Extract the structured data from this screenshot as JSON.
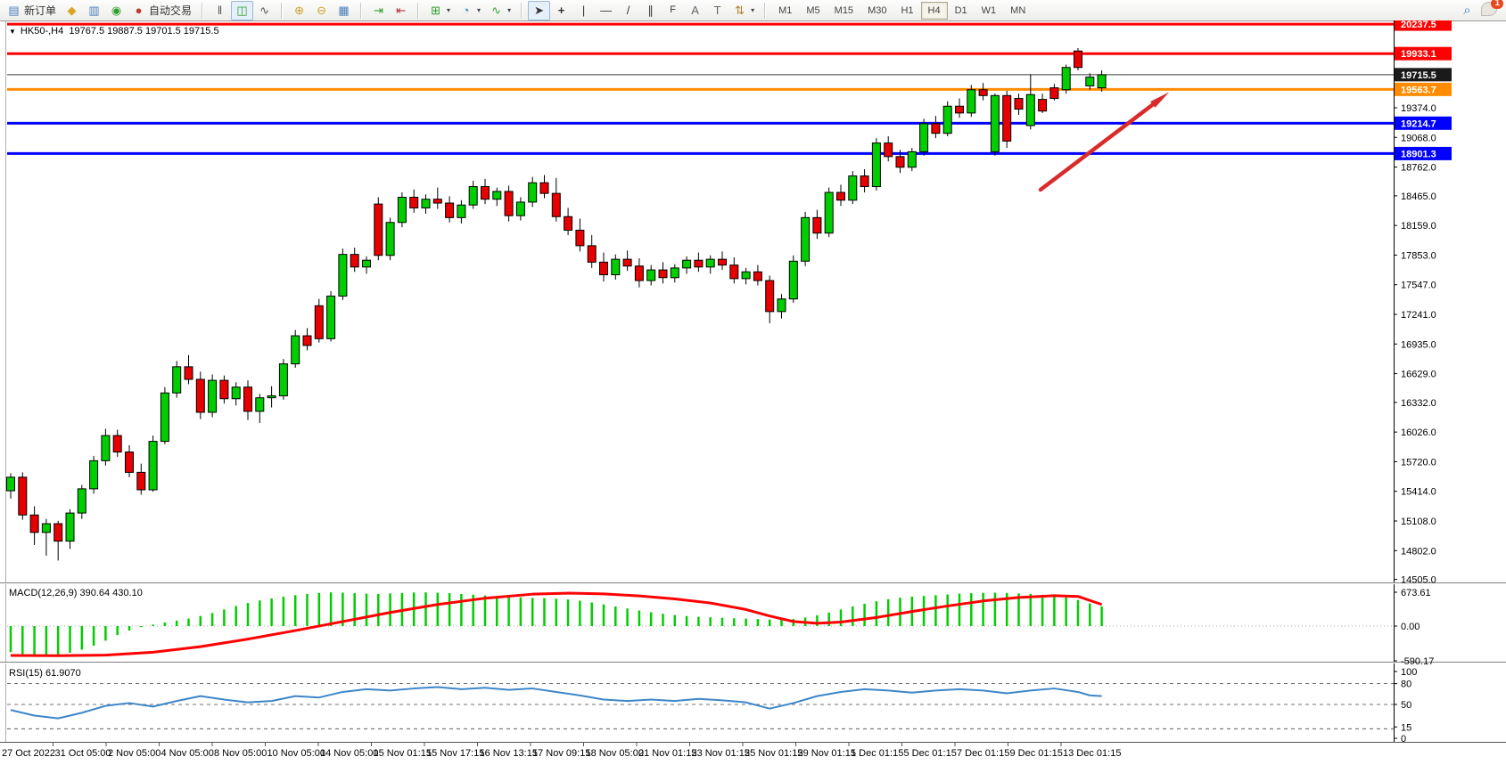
{
  "toolbar": {
    "new_order_label": "新订单",
    "auto_trading_label": "自动交易",
    "icon_glyphs": {
      "new_order": "▤",
      "gold": "◆",
      "charts_window": "▥",
      "signal": "◉",
      "auto_trading": "●",
      "bar_chart": "‖",
      "candle_chart": "◫",
      "line_chart": "∿",
      "zoom_in": "⊕",
      "zoom_out": "⊖",
      "tile_windows": "▦",
      "auto_scroll": "⇥",
      "chart_shift": "⇤",
      "new_chart": "⊞",
      "profiles": "◔",
      "indicators": "∿",
      "cursor": "➤",
      "crosshair": "+",
      "vertical_line": "|",
      "horizontal_line": "—",
      "trendline": "/",
      "channel": "∥",
      "fibonacci": "F",
      "text": "A",
      "text_label": "T",
      "arrows": "⇅",
      "search": "⌕",
      "caret": "▾"
    },
    "timeframes": [
      "M1",
      "M5",
      "M15",
      "M30",
      "H1",
      "H4",
      "D1",
      "W1",
      "MN"
    ],
    "active_timeframe": "H4",
    "chat_badge_count": "1"
  },
  "chart_header": {
    "symbol_period": "HK50-,H4",
    "ohlc": "19767.5 19887.5 19701.5 19715.5",
    "dropdown_glyph": "▼"
  },
  "macd_panel": {
    "label": "MACD(12,26,9)",
    "values": "390.64 430.10",
    "scale": [
      "673.61",
      "0.00",
      "-590.17"
    ]
  },
  "rsi_panel": {
    "label": "RSI(15)",
    "value": "61.9070",
    "scale": [
      "100",
      "80",
      "50",
      "15",
      "0"
    ],
    "dashed_levels": [
      80,
      50,
      15
    ]
  },
  "colors": {
    "up_candle": "#00CE00",
    "down_candle": "#E80000",
    "wick": "#000000",
    "macd_hist": "#00CE00",
    "macd_signal": "#FF0000",
    "rsi_line": "#3E86C8",
    "line_red": "#FF0000",
    "line_orange": "#FF8C00",
    "line_blue": "#0000FF",
    "line_black": "#3a3a3a",
    "badge_black": "#1a1a1a",
    "arrow": "#D92B2B"
  },
  "chart_data": {
    "type": "candlestick",
    "symbol": "HK50-",
    "period": "H4",
    "price_axis_ticks": [
      19374.0,
      19068.0,
      18762.0,
      18465.0,
      18159.0,
      17853.0,
      17547.0,
      17241.0,
      16935.0,
      16629.0,
      16332.0,
      16026.0,
      15720.0,
      15414.0,
      15108.0,
      14802.0,
      14505.0
    ],
    "price_range_visible": [
      14483,
      20266
    ],
    "horizontal_lines": [
      {
        "label": "20237.5",
        "value": 20237.5,
        "color": "red",
        "width": 3
      },
      {
        "label": "19933.1",
        "value": 19933.1,
        "color": "red",
        "width": 3
      },
      {
        "label": "19715.5",
        "value": 19715.5,
        "color": "black",
        "width": 1
      },
      {
        "label": "19563.7",
        "value": 19563.7,
        "color": "orange",
        "width": 3
      },
      {
        "label": "19214.7",
        "value": 19214.7,
        "color": "blue",
        "width": 3
      },
      {
        "label": "18901.3",
        "value": 18901.3,
        "color": "blue",
        "width": 3
      }
    ],
    "x_labels": [
      "27 Oct 2022",
      "31 Oct 05:00",
      "2 Nov 05:00",
      "4 Nov 05:00",
      "8 Nov 05:00",
      "10 Nov 05:00",
      "14 Nov 05:00",
      "15 Nov 01:15",
      "15 Nov 17:15",
      "16 Nov 13:15",
      "17 Nov 09:15",
      "18 Nov 05:00",
      "21 Nov 01:15",
      "23 Nov 01:15",
      "25 Nov 01:15",
      "29 Nov 01:15",
      "1 Dec 01:15",
      "5 Dec 01:15",
      "7 Dec 01:15",
      "9 Dec 01:15",
      "13 Dec 01:15"
    ],
    "candles_ohlc_estimated": [
      [
        15420,
        15600,
        15340,
        15560
      ],
      [
        15560,
        15610,
        15120,
        15170
      ],
      [
        15170,
        15260,
        14860,
        14990
      ],
      [
        14990,
        15130,
        14750,
        15080
      ],
      [
        15080,
        15110,
        14700,
        14900
      ],
      [
        14900,
        15230,
        14820,
        15190
      ],
      [
        15190,
        15480,
        15130,
        15440
      ],
      [
        15440,
        15780,
        15390,
        15730
      ],
      [
        15730,
        16060,
        15680,
        15990
      ],
      [
        15990,
        16050,
        15770,
        15820
      ],
      [
        15820,
        15890,
        15560,
        15610
      ],
      [
        15610,
        15700,
        15380,
        15430
      ],
      [
        15430,
        15990,
        15410,
        15930
      ],
      [
        15930,
        16490,
        15900,
        16430
      ],
      [
        16430,
        16760,
        16380,
        16700
      ],
      [
        16700,
        16820,
        16520,
        16570
      ],
      [
        16570,
        16650,
        16160,
        16230
      ],
      [
        16230,
        16620,
        16180,
        16560
      ],
      [
        16560,
        16610,
        16320,
        16370
      ],
      [
        16370,
        16540,
        16300,
        16490
      ],
      [
        16490,
        16560,
        16150,
        16240
      ],
      [
        16240,
        16420,
        16120,
        16380
      ],
      [
        16380,
        16500,
        16280,
        16400
      ],
      [
        16400,
        16780,
        16360,
        16730
      ],
      [
        16730,
        17080,
        16690,
        17020
      ],
      [
        17020,
        17100,
        16870,
        16920
      ],
      [
        17330,
        17400,
        16950,
        16990
      ],
      [
        16990,
        17480,
        16960,
        17430
      ],
      [
        17430,
        17920,
        17390,
        17860
      ],
      [
        17860,
        17930,
        17680,
        17730
      ],
      [
        17730,
        17840,
        17660,
        17800
      ],
      [
        18380,
        18450,
        17800,
        17850
      ],
      [
        17850,
        18240,
        17800,
        18190
      ],
      [
        18190,
        18500,
        18140,
        18450
      ],
      [
        18450,
        18530,
        18290,
        18340
      ],
      [
        18340,
        18480,
        18280,
        18430
      ],
      [
        18430,
        18550,
        18330,
        18390
      ],
      [
        18390,
        18460,
        18190,
        18240
      ],
      [
        18240,
        18420,
        18180,
        18370
      ],
      [
        18370,
        18620,
        18330,
        18560
      ],
      [
        18560,
        18640,
        18380,
        18430
      ],
      [
        18430,
        18550,
        18360,
        18510
      ],
      [
        18510,
        18570,
        18200,
        18260
      ],
      [
        18260,
        18450,
        18210,
        18400
      ],
      [
        18400,
        18660,
        18350,
        18600
      ],
      [
        18600,
        18680,
        18440,
        18490
      ],
      [
        18490,
        18650,
        18200,
        18250
      ],
      [
        18250,
        18340,
        18060,
        18110
      ],
      [
        18110,
        18230,
        17890,
        17950
      ],
      [
        17950,
        18060,
        17720,
        17780
      ],
      [
        17780,
        17880,
        17580,
        17650
      ],
      [
        17650,
        17860,
        17600,
        17810
      ],
      [
        17810,
        17900,
        17690,
        17740
      ],
      [
        17740,
        17820,
        17520,
        17590
      ],
      [
        17590,
        17750,
        17540,
        17700
      ],
      [
        17700,
        17780,
        17560,
        17620
      ],
      [
        17620,
        17760,
        17570,
        17720
      ],
      [
        17720,
        17840,
        17660,
        17800
      ],
      [
        17800,
        17880,
        17680,
        17730
      ],
      [
        17730,
        17850,
        17660,
        17810
      ],
      [
        17810,
        17890,
        17700,
        17750
      ],
      [
        17750,
        17830,
        17560,
        17610
      ],
      [
        17610,
        17720,
        17550,
        17680
      ],
      [
        17680,
        17750,
        17540,
        17590
      ],
      [
        17590,
        17640,
        17150,
        17270
      ],
      [
        17270,
        17450,
        17200,
        17400
      ],
      [
        17400,
        17850,
        17360,
        17790
      ],
      [
        17790,
        18300,
        17740,
        18240
      ],
      [
        18240,
        18320,
        18020,
        18080
      ],
      [
        18080,
        18550,
        18040,
        18500
      ],
      [
        18500,
        18580,
        18360,
        18420
      ],
      [
        18420,
        18720,
        18380,
        18670
      ],
      [
        18670,
        18740,
        18500,
        18560
      ],
      [
        18560,
        19060,
        18520,
        19010
      ],
      [
        19010,
        19080,
        18820,
        18870
      ],
      [
        18870,
        18940,
        18700,
        18760
      ],
      [
        18760,
        18960,
        18720,
        18920
      ],
      [
        18920,
        19260,
        18880,
        19210
      ],
      [
        19210,
        19290,
        19060,
        19110
      ],
      [
        19110,
        19440,
        19080,
        19390
      ],
      [
        19390,
        19470,
        19270,
        19320
      ],
      [
        19320,
        19610,
        19280,
        19560
      ],
      [
        19560,
        19630,
        19450,
        19500
      ],
      [
        18920,
        19520,
        18880,
        19500
      ],
      [
        19500,
        19550,
        18960,
        19030
      ],
      [
        19470,
        19520,
        19300,
        19360
      ],
      [
        19190,
        19720,
        19150,
        19510
      ],
      [
        19460,
        19520,
        19320,
        19340
      ],
      [
        19580,
        19620,
        19450,
        19470
      ],
      [
        19560,
        19820,
        19520,
        19790
      ],
      [
        19960,
        19990,
        19760,
        19790
      ],
      [
        19600,
        19730,
        19560,
        19690
      ],
      [
        19580,
        19760,
        19540,
        19715
      ]
    ],
    "macd": {
      "params": "12,26,9",
      "current_hist": 390.64,
      "current_signal": 430.1,
      "scale": [
        673.61,
        0.0,
        -590.17
      ],
      "histogram": [
        -520,
        -560,
        -585,
        -590,
        -570,
        -530,
        -470,
        -390,
        -290,
        -180,
        -90,
        -20,
        30,
        70,
        110,
        150,
        200,
        260,
        330,
        400,
        460,
        510,
        550,
        585,
        615,
        640,
        660,
        670,
        665,
        655,
        645,
        640,
        650,
        660,
        668,
        670,
        665,
        655,
        640,
        625,
        610,
        595,
        580,
        570,
        560,
        555,
        545,
        530,
        505,
        470,
        430,
        390,
        350,
        310,
        275,
        245,
        220,
        200,
        185,
        175,
        165,
        155,
        148,
        140,
        130,
        125,
        140,
        170,
        215,
        270,
        330,
        390,
        445,
        495,
        535,
        565,
        585,
        600,
        615,
        630,
        645,
        655,
        662,
        665,
        660,
        650,
        638,
        622,
        600,
        572,
        520,
        450,
        391
      ],
      "signal_points": [
        [
          0,
          -585
        ],
        [
          4,
          -590
        ],
        [
          8,
          -578
        ],
        [
          12,
          -520
        ],
        [
          16,
          -410
        ],
        [
          20,
          -260
        ],
        [
          24,
          -90
        ],
        [
          28,
          90
        ],
        [
          32,
          270
        ],
        [
          36,
          430
        ],
        [
          40,
          555
        ],
        [
          44,
          635
        ],
        [
          47,
          655
        ],
        [
          50,
          640
        ],
        [
          53,
          600
        ],
        [
          56,
          540
        ],
        [
          59,
          460
        ],
        [
          62,
          330
        ],
        [
          64,
          200
        ],
        [
          66,
          90
        ],
        [
          68,
          55
        ],
        [
          70,
          80
        ],
        [
          73,
          170
        ],
        [
          76,
          290
        ],
        [
          79,
          400
        ],
        [
          82,
          500
        ],
        [
          85,
          570
        ],
        [
          88,
          605
        ],
        [
          90,
          590
        ],
        [
          92,
          430
        ]
      ]
    },
    "rsi": {
      "period": 15,
      "current": 61.907,
      "levels": [
        80,
        50,
        15
      ],
      "points": [
        [
          0,
          42
        ],
        [
          2,
          34
        ],
        [
          4,
          30
        ],
        [
          6,
          38
        ],
        [
          8,
          48
        ],
        [
          10,
          52
        ],
        [
          12,
          47
        ],
        [
          14,
          55
        ],
        [
          16,
          62
        ],
        [
          18,
          57
        ],
        [
          20,
          53
        ],
        [
          22,
          55
        ],
        [
          24,
          62
        ],
        [
          26,
          60
        ],
        [
          28,
          68
        ],
        [
          30,
          72
        ],
        [
          32,
          70
        ],
        [
          34,
          73
        ],
        [
          36,
          75
        ],
        [
          38,
          72
        ],
        [
          40,
          74
        ],
        [
          42,
          71
        ],
        [
          44,
          73
        ],
        [
          46,
          68
        ],
        [
          48,
          63
        ],
        [
          50,
          57
        ],
        [
          52,
          55
        ],
        [
          54,
          57
        ],
        [
          56,
          55
        ],
        [
          58,
          58
        ],
        [
          60,
          56
        ],
        [
          62,
          53
        ],
        [
          64,
          44
        ],
        [
          66,
          52
        ],
        [
          68,
          62
        ],
        [
          70,
          68
        ],
        [
          72,
          72
        ],
        [
          74,
          70
        ],
        [
          76,
          67
        ],
        [
          78,
          70
        ],
        [
          80,
          72
        ],
        [
          82,
          70
        ],
        [
          84,
          66
        ],
        [
          86,
          70
        ],
        [
          88,
          73
        ],
        [
          90,
          68
        ],
        [
          91,
          63
        ],
        [
          92,
          62
        ]
      ]
    },
    "annotations": [
      {
        "type": "arrow",
        "from_xy": [
          1167,
          213
        ],
        "to_xy": [
          1300,
          112
        ],
        "color": "red"
      }
    ],
    "legend_position": "none",
    "grid": false
  }
}
